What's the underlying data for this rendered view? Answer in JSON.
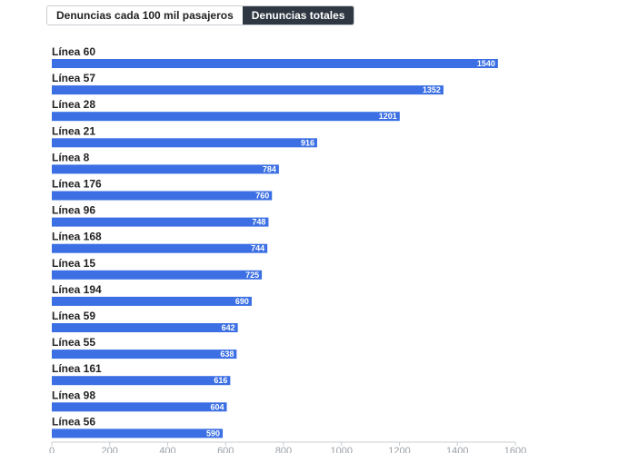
{
  "tabs": [
    {
      "label": "Denuncias cada 100 mil pasajeros",
      "active": false
    },
    {
      "label": "Denuncias totales",
      "active": true
    }
  ],
  "colors": {
    "bar": "#3b6fe3",
    "tab_active_bg": "#2f3742",
    "axis": "#c9ccd1"
  },
  "chart_data": {
    "type": "bar",
    "orientation": "horizontal",
    "categories": [
      "Línea 60",
      "Línea 57",
      "Línea 28",
      "Línea 21",
      "Línea 8",
      "Línea 176",
      "Línea 96",
      "Línea 168",
      "Línea 15",
      "Línea 194",
      "Línea 59",
      "Línea 55",
      "Línea 161",
      "Línea 98",
      "Línea 56"
    ],
    "values": [
      1540,
      1352,
      1201,
      916,
      784,
      760,
      748,
      744,
      725,
      690,
      642,
      638,
      616,
      604,
      590
    ],
    "value_labels": [
      "1540",
      "1352",
      "1201",
      "916",
      "784",
      "760",
      "748",
      "744",
      "725",
      "690",
      "642",
      "638",
      "616",
      "604",
      "590"
    ],
    "xlim": [
      0,
      1600
    ],
    "xticks": [
      0,
      200,
      400,
      600,
      800,
      1000,
      1200,
      1400,
      1600
    ],
    "xtick_labels": [
      "0",
      "200",
      "400",
      "600",
      "800",
      "1000",
      "1200",
      "1400",
      "1600"
    ],
    "title": "",
    "xlabel": "",
    "ylabel": "",
    "grid": false
  }
}
